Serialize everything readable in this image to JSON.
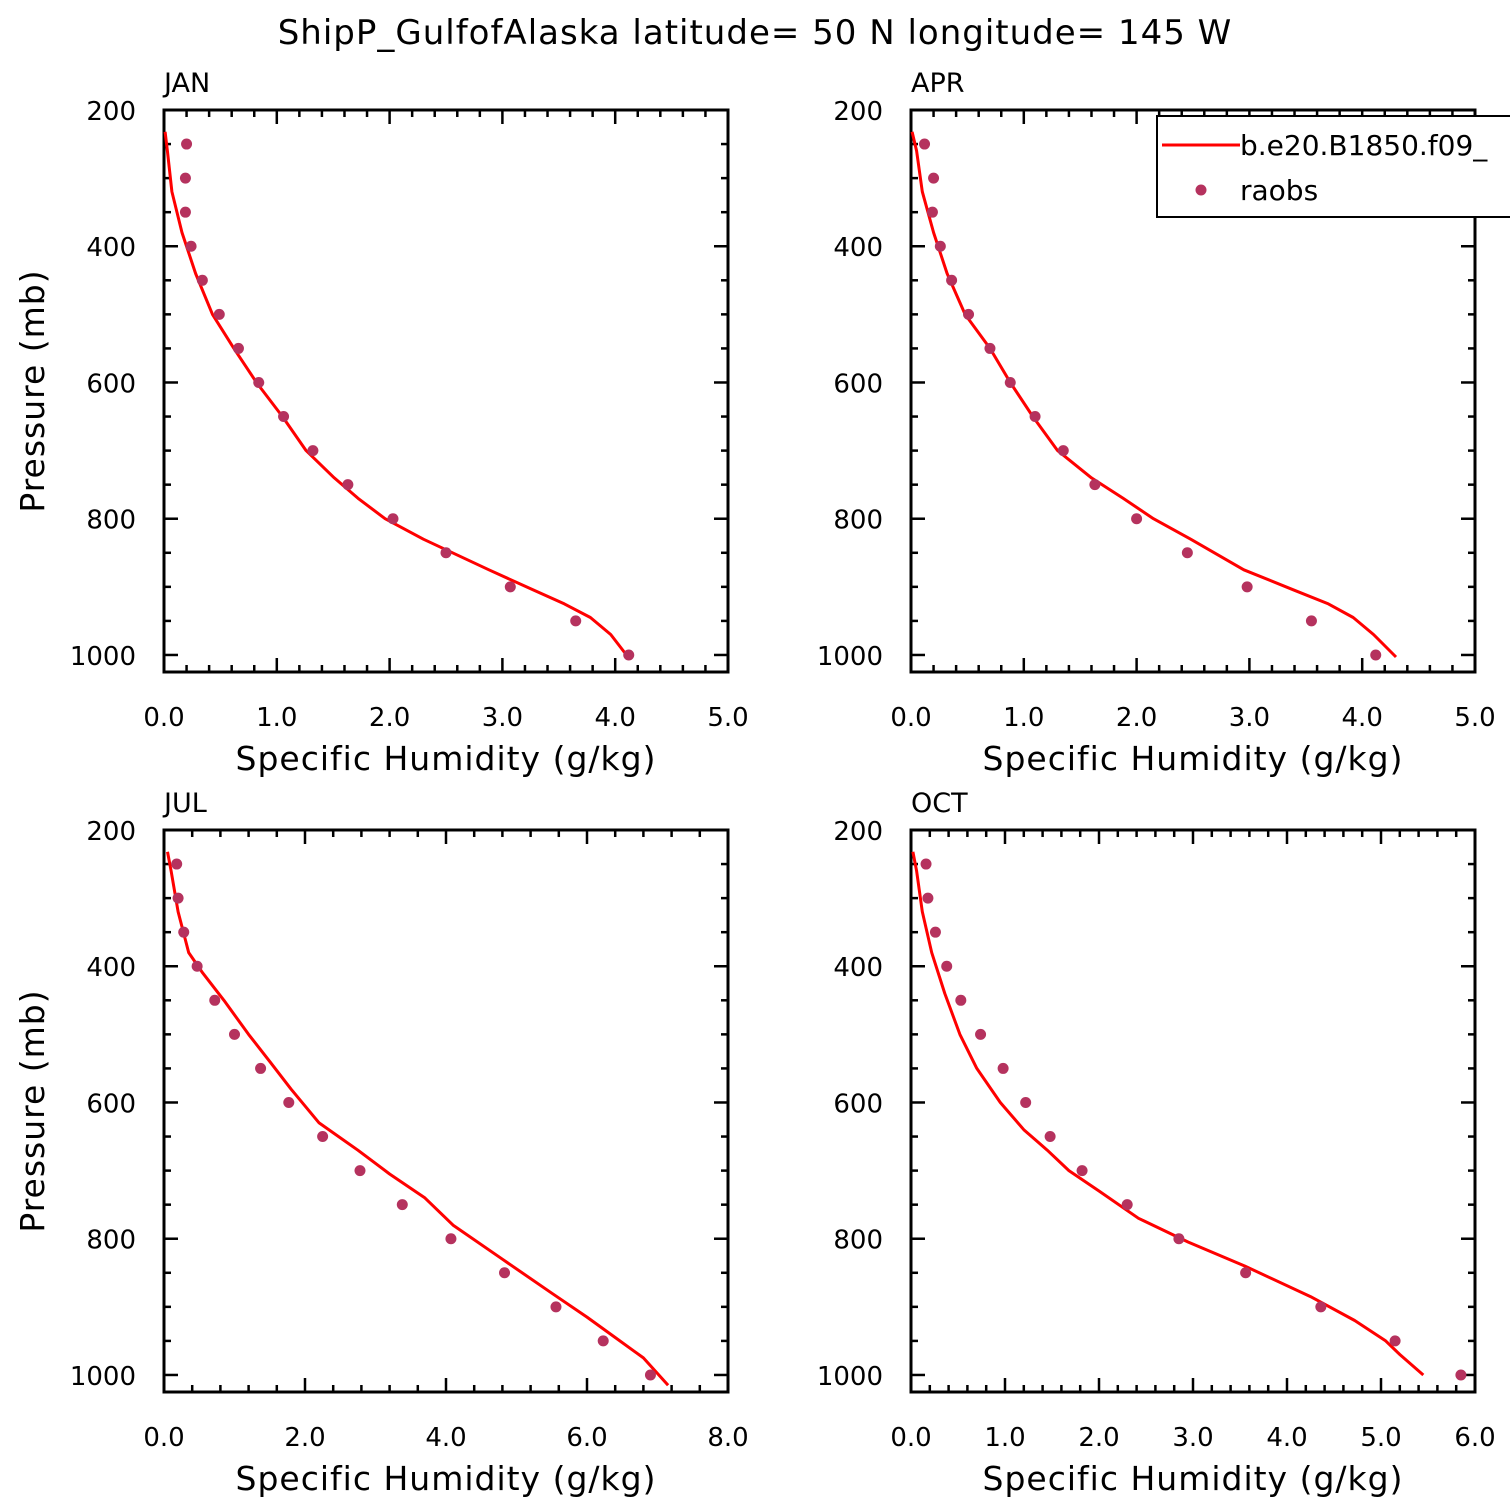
{
  "title": "ShipP_GulfofAlaska  latitude= 50 N longitude= 145 W",
  "colors": {
    "model_line": "#ff0000",
    "obs_marker": "#b5325e",
    "axis": "#000000"
  },
  "legend": {
    "placement": "top-right of APR panel",
    "entries": [
      {
        "label": "b.e20.B1850.f09_",
        "style": "line",
        "color": "#ff0000"
      },
      {
        "label": "raobs",
        "style": "marker",
        "color": "#b5325e"
      }
    ]
  },
  "chart_data": [
    {
      "type": "line",
      "panel": "JAN",
      "xlabel": "Specific Humidity (g/kg)",
      "ylabel": "Pressure (mb)",
      "xlim": [
        0,
        5
      ],
      "ylim": [
        200,
        1025
      ],
      "y_inverted": true,
      "xticks": [
        0,
        1,
        2,
        3,
        4,
        5
      ],
      "xtick_labels": [
        "0.0",
        "1.0",
        "2.0",
        "3.0",
        "4.0",
        "5.0"
      ],
      "yticks": [
        200,
        400,
        600,
        800,
        1000
      ],
      "ytick_labels": [
        "200",
        "400",
        "600",
        "800",
        "1000"
      ],
      "series": [
        {
          "name": "b.e20.B1850.f09_",
          "kind": "line",
          "x": [
            0.01,
            0.03,
            0.07,
            0.16,
            0.28,
            0.43,
            0.62,
            0.82,
            1.05,
            1.26,
            1.51,
            1.72,
            1.96,
            2.3,
            2.88,
            3.28,
            3.55,
            3.78,
            3.96,
            4.1
          ],
          "y": [
            232,
            260,
            320,
            380,
            440,
            500,
            550,
            600,
            650,
            700,
            740,
            770,
            800,
            830,
            875,
            905,
            925,
            945,
            970,
            1000
          ]
        },
        {
          "name": "raobs",
          "kind": "scatter",
          "x": [
            0.2,
            0.19,
            0.19,
            0.24,
            0.34,
            0.49,
            0.66,
            0.84,
            1.06,
            1.32,
            1.63,
            2.03,
            2.5,
            3.07,
            3.65,
            4.12
          ],
          "y": [
            250,
            300,
            350,
            400,
            450,
            500,
            550,
            600,
            650,
            700,
            750,
            800,
            850,
            900,
            950,
            1000
          ]
        }
      ]
    },
    {
      "type": "line",
      "panel": "APR",
      "xlabel": "Specific Humidity (g/kg)",
      "ylabel": "",
      "xlim": [
        0,
        5
      ],
      "ylim": [
        200,
        1025
      ],
      "y_inverted": true,
      "xticks": [
        0,
        1,
        2,
        3,
        4,
        5
      ],
      "xtick_labels": [
        "0.0",
        "1.0",
        "2.0",
        "3.0",
        "4.0",
        "5.0"
      ],
      "yticks": [
        200,
        400,
        600,
        800,
        1000
      ],
      "ytick_labels": [
        "200",
        "400",
        "600",
        "800",
        "1000"
      ],
      "series": [
        {
          "name": "b.e20.B1850.f09_",
          "kind": "line",
          "x": [
            0.01,
            0.05,
            0.1,
            0.2,
            0.32,
            0.48,
            0.7,
            0.88,
            1.08,
            1.3,
            1.6,
            1.88,
            2.15,
            2.48,
            2.95,
            3.4,
            3.7,
            3.92,
            4.1,
            4.3
          ],
          "y": [
            232,
            260,
            320,
            380,
            440,
            500,
            550,
            600,
            650,
            700,
            740,
            770,
            800,
            830,
            875,
            905,
            925,
            945,
            970,
            1003
          ]
        },
        {
          "name": "raobs",
          "kind": "scatter",
          "x": [
            0.12,
            0.2,
            0.19,
            0.26,
            0.36,
            0.51,
            0.7,
            0.88,
            1.1,
            1.35,
            1.63,
            2.0,
            2.45,
            2.98,
            3.55,
            4.12
          ],
          "y": [
            250,
            300,
            350,
            400,
            450,
            500,
            550,
            600,
            650,
            700,
            750,
            800,
            850,
            900,
            950,
            1000
          ]
        }
      ]
    },
    {
      "type": "line",
      "panel": "JUL",
      "xlabel": "Specific Humidity (g/kg)",
      "ylabel": "Pressure (mb)",
      "xlim": [
        0,
        8
      ],
      "ylim": [
        200,
        1025
      ],
      "y_inverted": true,
      "xticks": [
        0,
        2,
        4,
        6,
        8
      ],
      "xtick_labels": [
        "0.0",
        "2.0",
        "4.0",
        "6.0",
        "8.0"
      ],
      "yticks": [
        200,
        400,
        600,
        800,
        1000
      ],
      "ytick_labels": [
        "200",
        "400",
        "600",
        "800",
        "1000"
      ],
      "series": [
        {
          "name": "b.e20.B1850.f09_",
          "kind": "line",
          "x": [
            0.05,
            0.1,
            0.2,
            0.35,
            0.55,
            0.85,
            1.2,
            1.5,
            1.8,
            2.2,
            2.75,
            3.2,
            3.7,
            4.1,
            4.8,
            5.5,
            6.0,
            6.4,
            6.8,
            7.15
          ],
          "y": [
            232,
            260,
            320,
            380,
            410,
            450,
            500,
            540,
            580,
            630,
            670,
            705,
            740,
            780,
            830,
            880,
            915,
            945,
            975,
            1015
          ]
        },
        {
          "name": "raobs",
          "kind": "scatter",
          "x": [
            0.18,
            0.2,
            0.28,
            0.47,
            0.72,
            1.0,
            1.37,
            1.77,
            2.25,
            2.78,
            3.38,
            4.07,
            4.83,
            5.56,
            6.23,
            6.9
          ],
          "y": [
            250,
            300,
            350,
            400,
            450,
            500,
            550,
            600,
            650,
            700,
            750,
            800,
            850,
            900,
            950,
            1000
          ]
        }
      ]
    },
    {
      "type": "line",
      "panel": "OCT",
      "xlabel": "Specific Humidity (g/kg)",
      "ylabel": "",
      "xlim": [
        0,
        6
      ],
      "ylim": [
        200,
        1025
      ],
      "y_inverted": true,
      "xticks": [
        0,
        1,
        2,
        3,
        4,
        5,
        6
      ],
      "xtick_labels": [
        "0.0",
        "1.0",
        "2.0",
        "3.0",
        "4.0",
        "5.0",
        "6.0"
      ],
      "yticks": [
        200,
        400,
        600,
        800,
        1000
      ],
      "ytick_labels": [
        "200",
        "400",
        "600",
        "800",
        "1000"
      ],
      "series": [
        {
          "name": "b.e20.B1850.f09_",
          "kind": "line",
          "x": [
            0.02,
            0.06,
            0.12,
            0.22,
            0.36,
            0.52,
            0.7,
            0.95,
            1.2,
            1.45,
            1.68,
            2.0,
            2.42,
            2.95,
            3.55,
            4.25,
            4.72,
            5.05,
            5.2,
            5.45
          ],
          "y": [
            232,
            260,
            320,
            380,
            440,
            500,
            550,
            600,
            640,
            670,
            700,
            730,
            770,
            805,
            840,
            885,
            920,
            950,
            970,
            1000
          ]
        },
        {
          "name": "raobs",
          "kind": "scatter",
          "x": [
            0.16,
            0.18,
            0.26,
            0.38,
            0.53,
            0.74,
            0.98,
            1.22,
            1.48,
            1.82,
            2.3,
            2.85,
            3.56,
            4.36,
            5.15,
            5.85
          ],
          "y": [
            250,
            300,
            350,
            400,
            450,
            500,
            550,
            600,
            650,
            700,
            750,
            800,
            850,
            900,
            950,
            1000
          ]
        }
      ]
    }
  ]
}
